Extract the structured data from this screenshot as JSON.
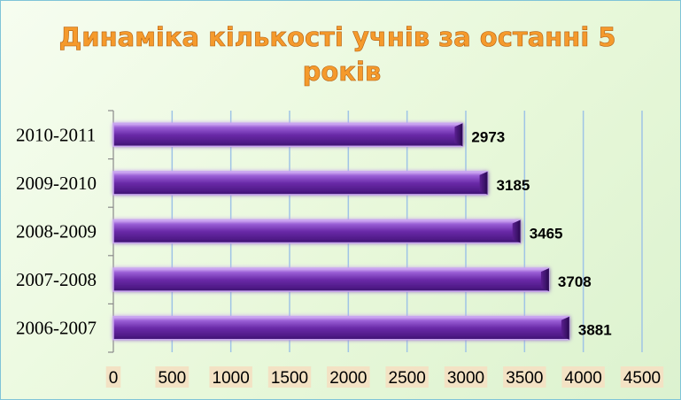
{
  "chart_data": {
    "type": "bar",
    "orientation": "horizontal",
    "title": "Динаміка кількості учнів за останні 5 років",
    "title_lines": [
      "Динаміка кількості учнів за останні 5",
      "років"
    ],
    "categories": [
      "2010-2011",
      "2009-2010",
      "2008-2009",
      "2007-2008",
      "2006-2007"
    ],
    "values": [
      2973,
      3185,
      3465,
      3708,
      3881
    ],
    "value_labels": [
      "2973",
      "3185",
      "3465",
      "3708",
      "3881"
    ],
    "xlim": [
      0,
      4500
    ],
    "ticks": [
      "0",
      "500",
      "1000",
      "1500",
      "2000",
      "2500",
      "3000",
      "3500",
      "4000",
      "4500"
    ],
    "tick_values": [
      0,
      500,
      1000,
      1500,
      2000,
      2500,
      3000,
      3500,
      4000,
      4500
    ],
    "grid": true,
    "legend": "none",
    "colors": {
      "bar_main": "#6a2aa8",
      "bar_light": "#c9a6f0",
      "bar_dark": "#3a0f6e",
      "title": "#f59a2c",
      "grid": "#9fc4e6",
      "tick_bg": "#f3e2c4"
    }
  }
}
